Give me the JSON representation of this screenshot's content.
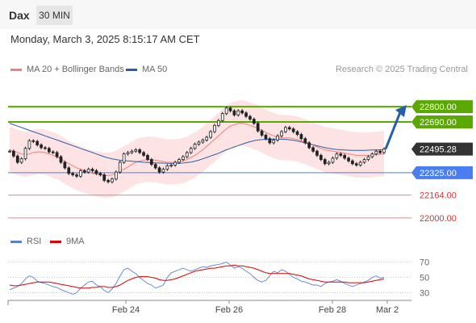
{
  "header": {
    "title": "Dax",
    "timeframe": "30 MIN"
  },
  "datetime": "Monday, March 3, 2025 8:15:17 AM CET",
  "legend": {
    "ma20": {
      "label": "MA 20 + Bollinger Bands",
      "color": "#f08080"
    },
    "ma50": {
      "label": "MA 50",
      "color": "#2a5fa8"
    }
  },
  "research": "Research © 2025 Trading Central",
  "rsi_legend": {
    "rsi": {
      "label": "RSI",
      "color": "#5b7fd6"
    },
    "ma9": {
      "label": "9MA",
      "color": "#e00000"
    }
  },
  "chart_data": [
    {
      "type": "candlestick",
      "ylim": [
        21930,
        22870
      ],
      "x_ticks": [
        "Feb 24",
        "Feb 26",
        "Feb 28",
        "Mar 2"
      ],
      "levels": [
        {
          "label": "22800.00",
          "value": 22800,
          "color": "#5aa900",
          "kind": "resistance"
        },
        {
          "label": "22690.00",
          "value": 22690,
          "color": "#5aa900",
          "kind": "resistance"
        },
        {
          "label": "22495.28",
          "value": 22495.28,
          "color": "#333333",
          "kind": "last-price"
        },
        {
          "label": "22325.00",
          "value": 22325,
          "color": "#4a7df0",
          "kind": "pivot"
        },
        {
          "label": "22164.00",
          "value": 22164,
          "color": "#f08080",
          "kind": "support"
        },
        {
          "label": "22000.00",
          "value": 22000,
          "color": "#f08080",
          "kind": "support"
        }
      ],
      "close_series": [
        22480,
        22445,
        22400,
        22425,
        22500,
        22555,
        22550,
        22525,
        22505,
        22500,
        22475,
        22470,
        22440,
        22400,
        22360,
        22320,
        22310,
        22300,
        22340,
        22330,
        22350,
        22340,
        22320,
        22310,
        22270,
        22260,
        22280,
        22330,
        22400,
        22460,
        22470,
        22480,
        22490,
        22470,
        22450,
        22420,
        22385,
        22360,
        22330,
        22350,
        22375,
        22380,
        22400,
        22420,
        22440,
        22470,
        22500,
        22530,
        22545,
        22560,
        22580,
        22620,
        22665,
        22700,
        22750,
        22790,
        22770,
        22740,
        22770,
        22755,
        22730,
        22710,
        22680,
        22625,
        22595,
        22570,
        22540,
        22560,
        22590,
        22620,
        22650,
        22640,
        22620,
        22600,
        22570,
        22540,
        22505,
        22480,
        22450,
        22420,
        22390,
        22400,
        22430,
        22460,
        22450,
        22430,
        22410,
        22390,
        22380,
        22400,
        22420,
        22440,
        22460,
        22480,
        22470,
        22495
      ],
      "ma20": [
        22490,
        22480,
        22470,
        22460,
        22455,
        22460,
        22470,
        22475,
        22475,
        22470,
        22460,
        22450,
        22440,
        22425,
        22405,
        22390,
        22375,
        22360,
        22350,
        22340,
        22330,
        22320,
        22315,
        22310,
        22305,
        22305,
        22310,
        22320,
        22335,
        22350,
        22365,
        22385,
        22400,
        22410,
        22415,
        22420,
        22420,
        22415,
        22410,
        22405,
        22400,
        22400,
        22400,
        22405,
        22410,
        22420,
        22435,
        22450,
        22470,
        22490,
        22515,
        22540,
        22565,
        22590,
        22615,
        22640,
        22660,
        22670,
        22680,
        22680,
        22675,
        22665,
        22655,
        22645,
        22630,
        22615,
        22600,
        22590,
        22580,
        22575,
        22575,
        22575,
        22570,
        22565,
        22555,
        22545,
        22535,
        22525,
        22510,
        22500,
        22490,
        22485,
        22480,
        22475,
        22470,
        22465,
        22460,
        22455,
        22450,
        22450,
        22450,
        22450,
        22452,
        22455,
        22458,
        22460
      ],
      "ma50": [
        22680,
        22670,
        22660,
        22650,
        22640,
        22630,
        22620,
        22610,
        22600,
        22590,
        22580,
        22570,
        22560,
        22550,
        22540,
        22530,
        22520,
        22510,
        22500,
        22490,
        22480,
        22470,
        22460,
        22450,
        22440,
        22432,
        22425,
        22420,
        22415,
        22412,
        22410,
        22408,
        22405,
        22403,
        22400,
        22398,
        22397,
        22396,
        22395,
        22394,
        22393,
        22392,
        22392,
        22393,
        22395,
        22398,
        22402,
        22408,
        22415,
        22425,
        22435,
        22445,
        22455,
        22465,
        22478,
        22490,
        22500,
        22510,
        22520,
        22530,
        22540,
        22548,
        22555,
        22560,
        22563,
        22565,
        22566,
        22567,
        22567,
        22566,
        22565,
        22562,
        22558,
        22553,
        22547,
        22540,
        22533,
        22526,
        22519,
        22512,
        22506,
        22500,
        22496,
        22492,
        22490,
        22488,
        22487,
        22486,
        22486,
        22486,
        22486,
        22487,
        22488,
        22489,
        22490,
        22491
      ],
      "bb_upper_offset": 165,
      "bb_lower_offset": 160,
      "forecast_arrow": {
        "from": 22495.28,
        "to": 22800
      }
    },
    {
      "type": "line",
      "title": "RSI",
      "ylim": [
        20,
        80
      ],
      "y_ticks": [
        70,
        50,
        30
      ],
      "rsi": [
        34,
        36,
        38,
        42,
        48,
        52,
        50,
        45,
        43,
        42,
        40,
        38,
        37,
        34,
        32,
        30,
        28,
        30,
        36,
        40,
        44,
        45,
        40,
        38,
        33,
        30,
        35,
        42,
        52,
        60,
        62,
        58,
        55,
        50,
        46,
        42,
        40,
        36,
        38,
        40,
        50,
        56,
        58,
        60,
        62,
        60,
        58,
        60,
        62,
        64,
        63,
        65,
        66,
        67,
        68,
        70,
        66,
        62,
        64,
        62,
        58,
        55,
        50,
        46,
        44,
        46,
        52,
        58,
        56,
        60,
        58,
        54,
        50,
        48,
        45,
        44,
        42,
        40,
        40,
        38,
        42,
        44,
        45,
        47,
        45,
        42,
        40,
        38,
        40,
        42,
        44,
        46,
        50,
        52,
        49,
        50
      ],
      "ma9": [
        40,
        39,
        39,
        40,
        41,
        42,
        43,
        44,
        44,
        44,
        44,
        43,
        42,
        41,
        40,
        39,
        38,
        37,
        36,
        36,
        36,
        37,
        37,
        38,
        38,
        37,
        37,
        38,
        40,
        43,
        46,
        48,
        50,
        51,
        51,
        51,
        50,
        49,
        47,
        46,
        46,
        47,
        48,
        50,
        52,
        54,
        56,
        58,
        59,
        60,
        61,
        62,
        62,
        63,
        64,
        65,
        65,
        66,
        65,
        65,
        64,
        63,
        62,
        60,
        58,
        56,
        55,
        55,
        55,
        55,
        55,
        55,
        54,
        53,
        52,
        50,
        48,
        47,
        46,
        45,
        44,
        44,
        44,
        44,
        44,
        44,
        43,
        43,
        43,
        43,
        43,
        44,
        45,
        46,
        47,
        48
      ]
    }
  ]
}
